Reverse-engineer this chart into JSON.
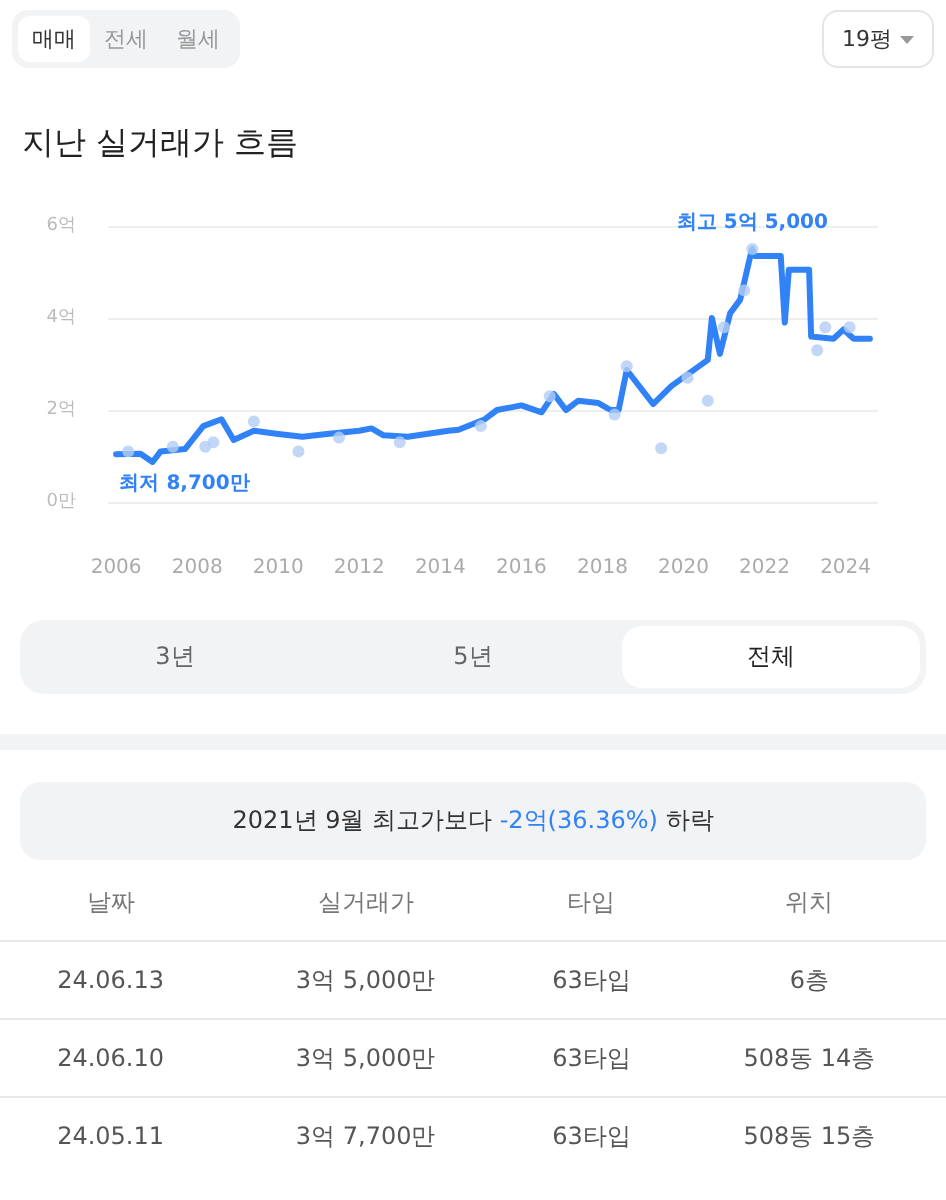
{
  "chart_data": [
    {
      "type": "line",
      "title": "지난 실거래가 흐름",
      "series": [
        {
          "type": "scatter",
          "marker": "circle",
          "color": "#b3cdf5",
          "x": [
            2006.3,
            2007.4,
            2008.2,
            2008.4,
            2009.4,
            2010.5,
            2011.5,
            2013.0,
            2015.0,
            2016.7,
            2018.3,
            2018.6,
            2019.45,
            2020.1,
            2020.6,
            2021.0,
            2021.5,
            2021.7,
            2023.3,
            2023.5,
            2024.1
          ],
          "values": [
            1.1,
            1.2,
            1.2,
            1.3,
            1.75,
            1.1,
            1.4,
            1.3,
            1.65,
            2.3,
            1.9,
            2.95,
            1.17,
            2.7,
            2.2,
            3.8,
            4.6,
            5.5,
            3.3,
            3.8,
            3.8
          ]
        },
        {
          "marker": "none",
          "color": "#3182f6",
          "x": [
            2006.0,
            2006.6,
            2006.9,
            2007.1,
            2007.7,
            2008.15,
            2008.6,
            2008.9,
            2009.4,
            2010.0,
            2010.6,
            2011.2,
            2012.0,
            2012.3,
            2012.6,
            2013.2,
            2014.2,
            2014.45,
            2015.1,
            2015.4,
            2016.0,
            2016.5,
            2016.8,
            2017.1,
            2017.4,
            2017.9,
            2018.2,
            2018.4,
            2018.6,
            2019.25,
            2019.7,
            2020.3,
            2020.6,
            2020.7,
            2020.9,
            2021.15,
            2021.4,
            2021.65,
            2021.7,
            2021.75,
            2022.4,
            2022.5,
            2022.6,
            2023.1,
            2023.15,
            2023.7,
            2023.95,
            2024.2,
            2024.6
          ],
          "values": [
            1.04,
            1.05,
            0.87,
            1.1,
            1.15,
            1.65,
            1.8,
            1.35,
            1.55,
            1.48,
            1.42,
            1.48,
            1.55,
            1.6,
            1.45,
            1.42,
            1.55,
            1.57,
            1.8,
            2.0,
            2.1,
            1.95,
            2.35,
            2.0,
            2.2,
            2.15,
            2.0,
            2.0,
            2.87,
            2.13,
            2.52,
            2.9,
            3.09,
            4.0,
            3.22,
            4.1,
            4.4,
            5.35,
            5.5,
            5.35,
            5.35,
            3.9,
            5.05,
            5.05,
            3.6,
            3.55,
            3.75,
            3.55,
            3.55
          ]
        }
      ],
      "xlim": [
        2005.8,
        2024.8
      ],
      "xticks": [
        2006,
        2008,
        2010,
        2012,
        2014,
        2016,
        2018,
        2020,
        2022,
        2024
      ],
      "ylim": [
        0,
        6
      ],
      "yticks": [
        {
          "value": 0,
          "label": "0만"
        },
        {
          "value": 2,
          "label": "2억"
        },
        {
          "value": 4,
          "label": "4억"
        },
        {
          "value": 6,
          "label": "6억"
        }
      ],
      "grid": "y",
      "line_style": "solid",
      "annotations": [
        {
          "text": "최고 5억 5,000",
          "x": 2021.7,
          "y": 5.5
        },
        {
          "text": "최저 8,700만",
          "x": 2006.9,
          "y": 0.87
        }
      ]
    },
    {
      "type": "other",
      "annotations": [
        "매매",
        "전세",
        "월세",
        "19평",
        "3년",
        "5년",
        "전체",
        "2021년 9월 최고가보다 ",
        "-2억(36.36%)",
        " 하락",
        "날짜",
        "실거래가",
        "타입",
        "위치",
        "24.06.13",
        "3억 5,000만",
        "63타입",
        "6층",
        "24.06.10",
        "3억 5,000만",
        "63타입",
        "508동 14층",
        "24.05.11",
        "3억 7,700만",
        "63타입",
        "508동 15층"
      ]
    }
  ]
}
